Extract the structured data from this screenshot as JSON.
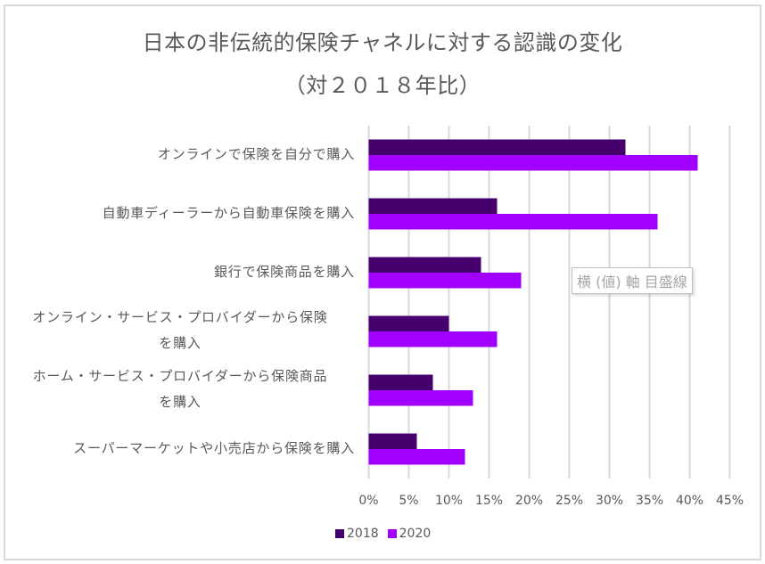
{
  "chart_data": {
    "type": "bar",
    "orientation": "horizontal",
    "title": "日本の非伝統的保険チャネルに対する認識の変化",
    "subtitle": "（対２０１８年比）",
    "categories": [
      "オンラインで保険を自分で購入",
      "自動車ディーラーから自動車保険を購入",
      "銀行で保険商品を購入",
      "オンライン・サービス・プロバイダーから保険を購入",
      "ホーム・サービス・プロバイダーから保険商品を購入",
      "スーパーマーケットや小売店から保険を購入"
    ],
    "category_label_lines": [
      [
        "オンラインで保険を自分で購入"
      ],
      [
        "自動車ディーラーから自動車保険を購入"
      ],
      [
        "銀行で保険商品を購入"
      ],
      [
        "オンライン・サービス・プロバイダーから保険",
        "を購入"
      ],
      [
        "ホーム・サービス・プロバイダーから保険商品",
        "を購入"
      ],
      [
        "スーパーマーケットや小売店から保険を購入"
      ]
    ],
    "series": [
      {
        "name": "2018",
        "color": "#46006E",
        "values": [
          32,
          16,
          14,
          10,
          8,
          6
        ]
      },
      {
        "name": "2020",
        "color": "#A100FF",
        "values": [
          41,
          36,
          19,
          16,
          13,
          12
        ]
      }
    ],
    "xlim": [
      0,
      45
    ],
    "x_ticks": [
      "0%",
      "5%",
      "10%",
      "15%",
      "20%",
      "25%",
      "30%",
      "35%",
      "40%",
      "45%"
    ],
    "x_tick_values": [
      0,
      5,
      10,
      15,
      20,
      25,
      30,
      35,
      40,
      45
    ],
    "grid": true,
    "legend_position": "bottom",
    "xlabel": "",
    "ylabel": ""
  },
  "tooltip": {
    "text": "横 (値) 軸 目盛線"
  },
  "colors": {
    "grid": "#d9d9d9",
    "text": "#595959"
  }
}
